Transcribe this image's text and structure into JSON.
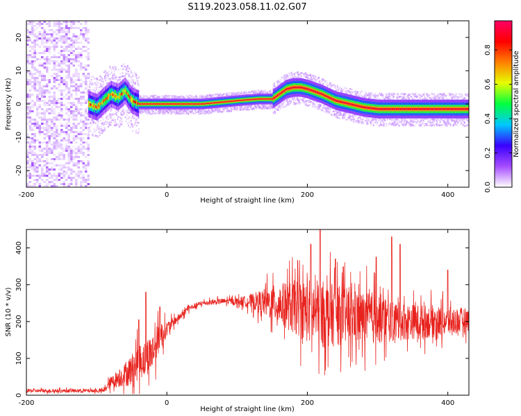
{
  "title": "S119.2023.058.11.02.G07",
  "chart_data": [
    {
      "type": "heatmap",
      "xlabel": "Height of straight line (km)",
      "ylabel": "Frequency (Hz)",
      "xlim": [
        -200,
        430
      ],
      "ylim": [
        -25,
        25
      ],
      "xticks": [
        -200,
        0,
        200,
        400
      ],
      "yticks": [
        -20,
        -10,
        0,
        10,
        20
      ],
      "colorbar": {
        "label": "Normalized spectral amplitude",
        "range": [
          0,
          0.97
        ],
        "ticks": [
          "0.0",
          "0.2",
          "0.4",
          "0.6",
          "0.8"
        ],
        "tick_values": [
          0,
          0.2,
          0.4,
          0.6,
          0.8
        ],
        "colors": [
          "#ffffff",
          "#a64dff",
          "#3a00ff",
          "#00c8ff",
          "#00ff40",
          "#e6ff00",
          "#ff8000",
          "#ff0000",
          "#ff0066"
        ]
      },
      "noise_region_x": [
        -200,
        -113
      ],
      "ridge": {
        "x": [
          -112,
          -100,
          -90,
          -80,
          -70,
          -60,
          -50,
          -40,
          -30,
          0,
          50,
          100,
          130,
          150,
          160,
          170,
          180,
          190,
          200,
          220,
          240,
          260,
          280,
          300,
          330,
          360,
          400,
          430
        ],
        "freq": [
          0,
          -1,
          1,
          3,
          2,
          4,
          1,
          0,
          0,
          0,
          0,
          1,
          1.5,
          1.5,
          3,
          4.5,
          5,
          5,
          4.5,
          3,
          1,
          0,
          -1,
          -1.5,
          -1.5,
          -1.5,
          -1.5,
          -1.5
        ]
      }
    },
    {
      "type": "line",
      "xlabel": "Height of straight line (km)",
      "ylabel": "SNR (10 * v/v)",
      "xlim": [
        -200,
        430
      ],
      "ylim": [
        0,
        450
      ],
      "xticks": [
        -200,
        0,
        200,
        400
      ],
      "yticks": [
        0,
        100,
        200,
        300,
        400
      ],
      "color": "#e8231e",
      "envelope": {
        "x": [
          -200,
          -90,
          -80,
          -70,
          -60,
          -50,
          -40,
          -30,
          -20,
          -10,
          0,
          10,
          20,
          30,
          50,
          80,
          100,
          120,
          150,
          180,
          200,
          220,
          250,
          280,
          300,
          320,
          350,
          380,
          400,
          430
        ],
        "mean": [
          12,
          12,
          35,
          45,
          55,
          70,
          90,
          100,
          120,
          160,
          180,
          200,
          215,
          235,
          250,
          255,
          255,
          255,
          250,
          240,
          230,
          220,
          215,
          210,
          210,
          200,
          200,
          200,
          200,
          205
        ],
        "spread": [
          6,
          6,
          20,
          30,
          40,
          55,
          60,
          60,
          65,
          50,
          25,
          15,
          12,
          10,
          8,
          10,
          12,
          25,
          60,
          90,
          110,
          115,
          100,
          90,
          90,
          70,
          60,
          55,
          50,
          40
        ]
      },
      "peaks": [
        [
          -40,
          205
        ],
        [
          -30,
          280
        ],
        [
          -10,
          240
        ],
        [
          205,
          410
        ],
        [
          218,
          450
        ],
        [
          240,
          370
        ],
        [
          298,
          375
        ],
        [
          320,
          430
        ],
        [
          332,
          410
        ],
        [
          400,
          340
        ]
      ]
    }
  ]
}
